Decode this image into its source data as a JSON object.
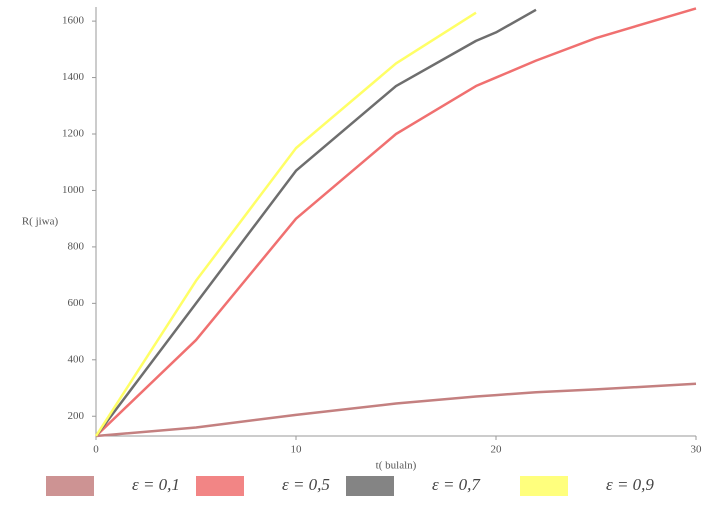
{
  "chart_data": {
    "type": "line",
    "x_label": "t( bulaln)",
    "y_label": "R( jiwa)",
    "x": [
      0,
      5,
      10,
      15,
      19,
      20,
      22,
      25,
      30
    ],
    "series": [
      {
        "name": "ε = 0,1",
        "color": "#c48080",
        "values": [
          130,
          160,
          205,
          245,
          270,
          275,
          285,
          295,
          315
        ]
      },
      {
        "name": "ε = 0,5",
        "color": "#f07070",
        "values": [
          130,
          470,
          900,
          1200,
          1370,
          1400,
          1460,
          1540,
          1645
        ]
      },
      {
        "name": "ε = 0,7",
        "color": "#6e6e6e",
        "values": [
          130,
          600,
          1070,
          1370,
          1530,
          1560,
          1640,
          null,
          null
        ]
      },
      {
        "name": "ε = 0,9",
        "color": "#ffff66",
        "values": [
          130,
          680,
          1150,
          1450,
          1630,
          null,
          null,
          null,
          null
        ]
      }
    ],
    "xlim": [
      0,
      30
    ],
    "ylim": [
      130,
      1650
    ],
    "xticks": [
      0,
      10,
      20,
      30
    ],
    "yticks": [
      200,
      400,
      600,
      800,
      1000,
      1200,
      1400,
      1600
    ],
    "legend": "bottom"
  }
}
